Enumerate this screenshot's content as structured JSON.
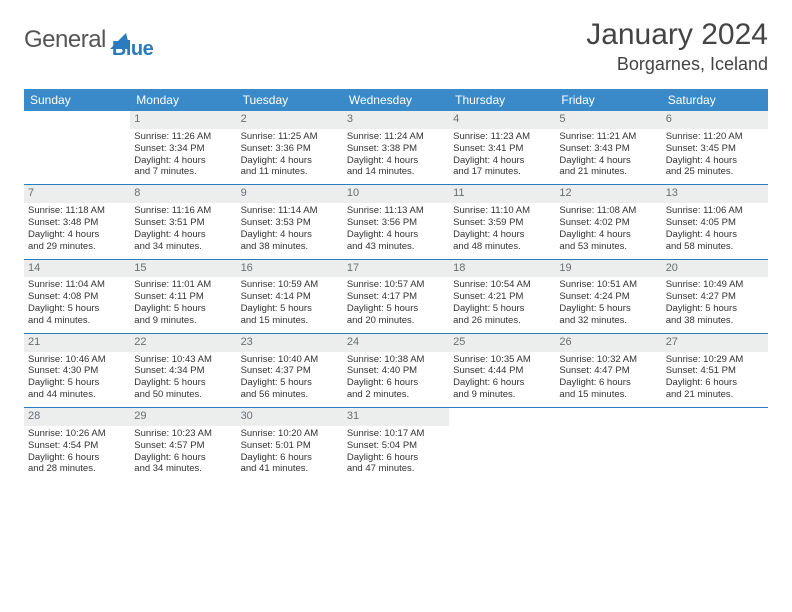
{
  "brand": {
    "part1": "General",
    "part2": "Blue"
  },
  "title": "January 2024",
  "location": "Borgarnes, Iceland",
  "colors": {
    "header_bg": "#3a8ac9",
    "header_text": "#ffffff",
    "daynum_bg": "#eceeee",
    "daynum_text": "#6a6f73",
    "row_border": "#2b7bbd",
    "body_text": "#333333",
    "brand_blue": "#2b7bbd"
  },
  "fonts": {
    "body_pt": 9.5,
    "title_pt": 30,
    "location_pt": 18,
    "header_pt": 12
  },
  "weekdays": [
    "Sunday",
    "Monday",
    "Tuesday",
    "Wednesday",
    "Thursday",
    "Friday",
    "Saturday"
  ],
  "weeks": [
    [
      null,
      {
        "n": "1",
        "sr": "Sunrise: 11:26 AM",
        "ss": "Sunset: 3:34 PM",
        "d1": "Daylight: 4 hours",
        "d2": "and 7 minutes."
      },
      {
        "n": "2",
        "sr": "Sunrise: 11:25 AM",
        "ss": "Sunset: 3:36 PM",
        "d1": "Daylight: 4 hours",
        "d2": "and 11 minutes."
      },
      {
        "n": "3",
        "sr": "Sunrise: 11:24 AM",
        "ss": "Sunset: 3:38 PM",
        "d1": "Daylight: 4 hours",
        "d2": "and 14 minutes."
      },
      {
        "n": "4",
        "sr": "Sunrise: 11:23 AM",
        "ss": "Sunset: 3:41 PM",
        "d1": "Daylight: 4 hours",
        "d2": "and 17 minutes."
      },
      {
        "n": "5",
        "sr": "Sunrise: 11:21 AM",
        "ss": "Sunset: 3:43 PM",
        "d1": "Daylight: 4 hours",
        "d2": "and 21 minutes."
      },
      {
        "n": "6",
        "sr": "Sunrise: 11:20 AM",
        "ss": "Sunset: 3:45 PM",
        "d1": "Daylight: 4 hours",
        "d2": "and 25 minutes."
      }
    ],
    [
      {
        "n": "7",
        "sr": "Sunrise: 11:18 AM",
        "ss": "Sunset: 3:48 PM",
        "d1": "Daylight: 4 hours",
        "d2": "and 29 minutes."
      },
      {
        "n": "8",
        "sr": "Sunrise: 11:16 AM",
        "ss": "Sunset: 3:51 PM",
        "d1": "Daylight: 4 hours",
        "d2": "and 34 minutes."
      },
      {
        "n": "9",
        "sr": "Sunrise: 11:14 AM",
        "ss": "Sunset: 3:53 PM",
        "d1": "Daylight: 4 hours",
        "d2": "and 38 minutes."
      },
      {
        "n": "10",
        "sr": "Sunrise: 11:13 AM",
        "ss": "Sunset: 3:56 PM",
        "d1": "Daylight: 4 hours",
        "d2": "and 43 minutes."
      },
      {
        "n": "11",
        "sr": "Sunrise: 11:10 AM",
        "ss": "Sunset: 3:59 PM",
        "d1": "Daylight: 4 hours",
        "d2": "and 48 minutes."
      },
      {
        "n": "12",
        "sr": "Sunrise: 11:08 AM",
        "ss": "Sunset: 4:02 PM",
        "d1": "Daylight: 4 hours",
        "d2": "and 53 minutes."
      },
      {
        "n": "13",
        "sr": "Sunrise: 11:06 AM",
        "ss": "Sunset: 4:05 PM",
        "d1": "Daylight: 4 hours",
        "d2": "and 58 minutes."
      }
    ],
    [
      {
        "n": "14",
        "sr": "Sunrise: 11:04 AM",
        "ss": "Sunset: 4:08 PM",
        "d1": "Daylight: 5 hours",
        "d2": "and 4 minutes."
      },
      {
        "n": "15",
        "sr": "Sunrise: 11:01 AM",
        "ss": "Sunset: 4:11 PM",
        "d1": "Daylight: 5 hours",
        "d2": "and 9 minutes."
      },
      {
        "n": "16",
        "sr": "Sunrise: 10:59 AM",
        "ss": "Sunset: 4:14 PM",
        "d1": "Daylight: 5 hours",
        "d2": "and 15 minutes."
      },
      {
        "n": "17",
        "sr": "Sunrise: 10:57 AM",
        "ss": "Sunset: 4:17 PM",
        "d1": "Daylight: 5 hours",
        "d2": "and 20 minutes."
      },
      {
        "n": "18",
        "sr": "Sunrise: 10:54 AM",
        "ss": "Sunset: 4:21 PM",
        "d1": "Daylight: 5 hours",
        "d2": "and 26 minutes."
      },
      {
        "n": "19",
        "sr": "Sunrise: 10:51 AM",
        "ss": "Sunset: 4:24 PM",
        "d1": "Daylight: 5 hours",
        "d2": "and 32 minutes."
      },
      {
        "n": "20",
        "sr": "Sunrise: 10:49 AM",
        "ss": "Sunset: 4:27 PM",
        "d1": "Daylight: 5 hours",
        "d2": "and 38 minutes."
      }
    ],
    [
      {
        "n": "21",
        "sr": "Sunrise: 10:46 AM",
        "ss": "Sunset: 4:30 PM",
        "d1": "Daylight: 5 hours",
        "d2": "and 44 minutes."
      },
      {
        "n": "22",
        "sr": "Sunrise: 10:43 AM",
        "ss": "Sunset: 4:34 PM",
        "d1": "Daylight: 5 hours",
        "d2": "and 50 minutes."
      },
      {
        "n": "23",
        "sr": "Sunrise: 10:40 AM",
        "ss": "Sunset: 4:37 PM",
        "d1": "Daylight: 5 hours",
        "d2": "and 56 minutes."
      },
      {
        "n": "24",
        "sr": "Sunrise: 10:38 AM",
        "ss": "Sunset: 4:40 PM",
        "d1": "Daylight: 6 hours",
        "d2": "and 2 minutes."
      },
      {
        "n": "25",
        "sr": "Sunrise: 10:35 AM",
        "ss": "Sunset: 4:44 PM",
        "d1": "Daylight: 6 hours",
        "d2": "and 9 minutes."
      },
      {
        "n": "26",
        "sr": "Sunrise: 10:32 AM",
        "ss": "Sunset: 4:47 PM",
        "d1": "Daylight: 6 hours",
        "d2": "and 15 minutes."
      },
      {
        "n": "27",
        "sr": "Sunrise: 10:29 AM",
        "ss": "Sunset: 4:51 PM",
        "d1": "Daylight: 6 hours",
        "d2": "and 21 minutes."
      }
    ],
    [
      {
        "n": "28",
        "sr": "Sunrise: 10:26 AM",
        "ss": "Sunset: 4:54 PM",
        "d1": "Daylight: 6 hours",
        "d2": "and 28 minutes."
      },
      {
        "n": "29",
        "sr": "Sunrise: 10:23 AM",
        "ss": "Sunset: 4:57 PM",
        "d1": "Daylight: 6 hours",
        "d2": "and 34 minutes."
      },
      {
        "n": "30",
        "sr": "Sunrise: 10:20 AM",
        "ss": "Sunset: 5:01 PM",
        "d1": "Daylight: 6 hours",
        "d2": "and 41 minutes."
      },
      {
        "n": "31",
        "sr": "Sunrise: 10:17 AM",
        "ss": "Sunset: 5:04 PM",
        "d1": "Daylight: 6 hours",
        "d2": "and 47 minutes."
      },
      null,
      null,
      null
    ]
  ]
}
